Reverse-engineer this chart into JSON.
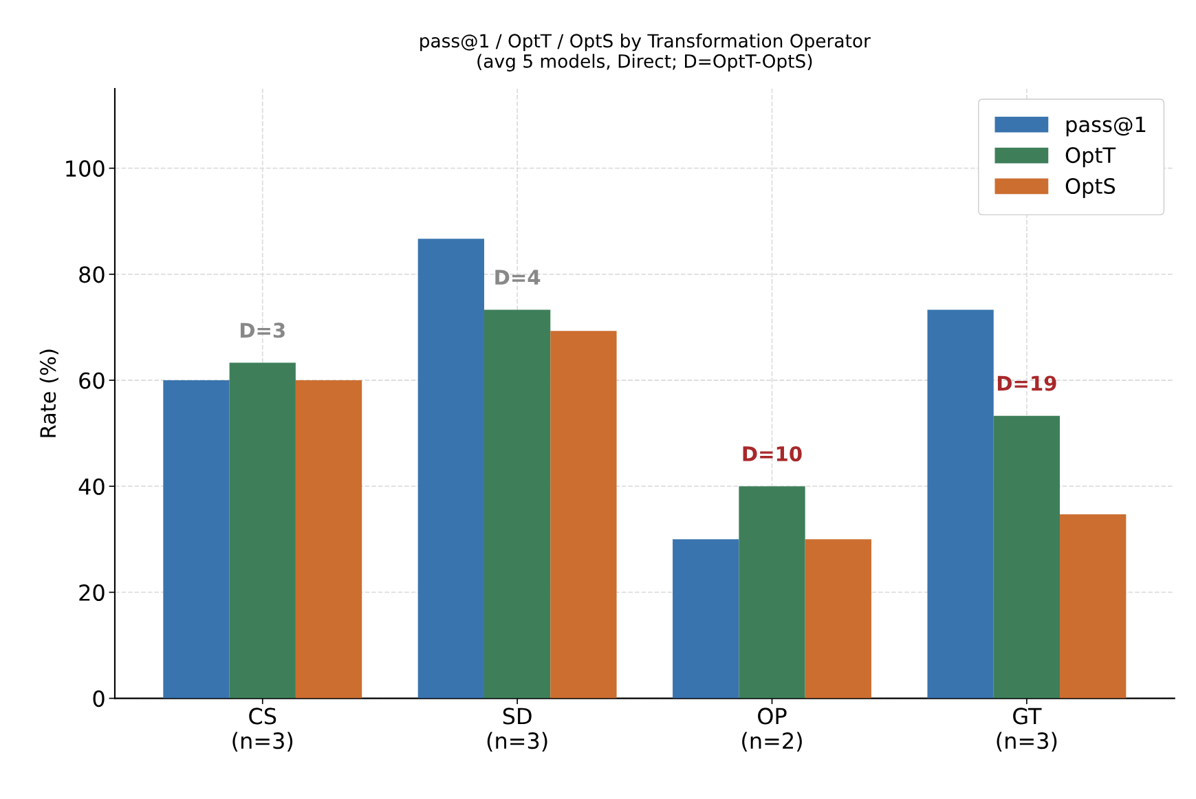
{
  "chart_data": {
    "type": "bar",
    "title": "pass@1 / OptT / OptS by Transformation Operator\n(avg 5 models, Direct; D=OptT-OptS)",
    "ylabel": "Rate (%)",
    "categories": [
      "CS\n(n=3)",
      "SD\n(n=3)",
      "OP\n(n=2)",
      "GT\n(n=3)"
    ],
    "series": [
      {
        "name": "pass@1",
        "color": "#3974ae",
        "values": [
          60,
          86.7,
          30,
          73.3
        ]
      },
      {
        "name": "OptT",
        "color": "#3e7f5a",
        "values": [
          63.3,
          73.3,
          40,
          53.3
        ]
      },
      {
        "name": "OptS",
        "color": "#cc6e30",
        "values": [
          60,
          69.3,
          30,
          34.7
        ]
      }
    ],
    "ylim": [
      0,
      115
    ],
    "yticks": [
      0,
      20,
      40,
      60,
      80,
      100
    ],
    "grid": true,
    "legend": "top right",
    "annotations": [
      "D=3",
      "D=4",
      "D=10",
      "D=19"
    ]
  }
}
